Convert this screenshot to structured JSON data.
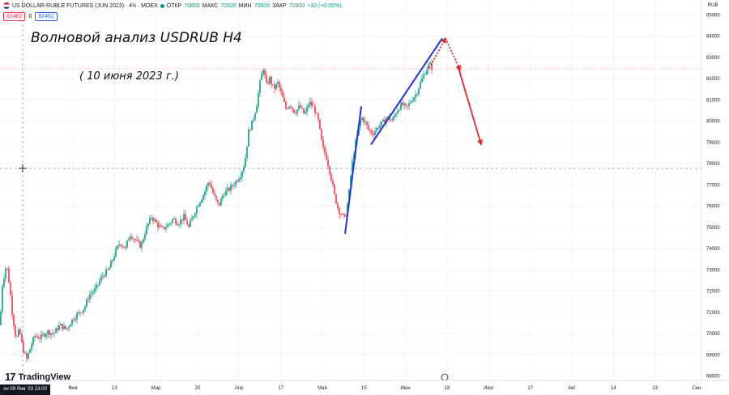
{
  "header": {
    "symbol": "US DOLLAR-RUBLE FUTURES (JUN 2023) · 4Ч · MOEX",
    "open_label": "ОТКР",
    "open": "70850",
    "high_label": "МАКС",
    "high": "70926",
    "low_label": "МИН",
    "low": "70826",
    "close_label": "ЗАКР",
    "close": "70900",
    "change": "+33 (+0.05%)",
    "price_pill": "82462",
    "zero": "0",
    "price_pill2": "82462"
  },
  "annotations": {
    "title": "Волновой анализ USDRUB H4",
    "date": "( 10 июня 2023 г.)"
  },
  "footer": {
    "logo_text": "TradingView",
    "crosshair_date": "пн 09 Янв '23  23:00"
  },
  "colors": {
    "up": "#089981",
    "down": "#f23645",
    "wave_line": "#2133e8",
    "forecast": "#e8242a",
    "price_line": "#f23645",
    "crosshair_line": "#787b86"
  },
  "chart_data": {
    "type": "candlestick",
    "y_unit": "RUB",
    "ylim": [
      67800,
      85700
    ],
    "y_ticks": [
      68000,
      69000,
      70000,
      71000,
      72000,
      73000,
      74000,
      75000,
      76000,
      77000,
      78000,
      79000,
      80000,
      81000,
      82000,
      83000,
      84000,
      85000
    ],
    "x_ticks": [
      "Фев",
      "13",
      "Мар",
      "20",
      "Апр",
      "17",
      "Май",
      "15",
      "Июн",
      "19",
      "Июл",
      "17",
      "Авг",
      "14",
      "23",
      "Сен"
    ],
    "last_price": "82462",
    "crosshair_price": "77776",
    "price_series": [
      {
        "t": 0,
        "v": 70400
      },
      {
        "t": 3,
        "v": 72300
      },
      {
        "t": 8,
        "v": 73300
      },
      {
        "t": 12,
        "v": 72200
      },
      {
        "t": 15,
        "v": 71000
      },
      {
        "t": 20,
        "v": 69700
      },
      {
        "t": 24,
        "v": 70200
      },
      {
        "t": 28,
        "v": 69300
      },
      {
        "t": 33,
        "v": 68800
      },
      {
        "t": 38,
        "v": 69400
      },
      {
        "t": 43,
        "v": 69900
      },
      {
        "t": 50,
        "v": 69800
      },
      {
        "t": 58,
        "v": 70100
      },
      {
        "t": 66,
        "v": 70000
      },
      {
        "t": 74,
        "v": 70400
      },
      {
        "t": 82,
        "v": 70200
      },
      {
        "t": 90,
        "v": 70700
      },
      {
        "t": 98,
        "v": 71000
      },
      {
        "t": 104,
        "v": 71200
      },
      {
        "t": 110,
        "v": 71800
      },
      {
        "t": 118,
        "v": 72100
      },
      {
        "t": 126,
        "v": 72700
      },
      {
        "t": 134,
        "v": 73000
      },
      {
        "t": 142,
        "v": 73800
      },
      {
        "t": 148,
        "v": 74300
      },
      {
        "t": 155,
        "v": 74000
      },
      {
        "t": 160,
        "v": 74700
      },
      {
        "t": 167,
        "v": 74400
      },
      {
        "t": 174,
        "v": 74100
      },
      {
        "t": 180,
        "v": 74900
      },
      {
        "t": 187,
        "v": 75500
      },
      {
        "t": 193,
        "v": 75200
      },
      {
        "t": 200,
        "v": 74900
      },
      {
        "t": 207,
        "v": 75100
      },
      {
        "t": 214,
        "v": 75400
      },
      {
        "t": 220,
        "v": 75200
      },
      {
        "t": 227,
        "v": 75500
      },
      {
        "t": 233,
        "v": 75000
      },
      {
        "t": 240,
        "v": 75700
      },
      {
        "t": 246,
        "v": 76200
      },
      {
        "t": 252,
        "v": 76600
      },
      {
        "t": 258,
        "v": 77200
      },
      {
        "t": 264,
        "v": 76500
      },
      {
        "t": 270,
        "v": 76000
      },
      {
        "t": 276,
        "v": 76600
      },
      {
        "t": 283,
        "v": 76800
      },
      {
        "t": 290,
        "v": 77100
      },
      {
        "t": 297,
        "v": 77500
      },
      {
        "t": 302,
        "v": 78000
      },
      {
        "t": 307,
        "v": 79500
      },
      {
        "t": 312,
        "v": 80000
      },
      {
        "t": 317,
        "v": 80800
      },
      {
        "t": 321,
        "v": 81800
      },
      {
        "t": 325,
        "v": 82500
      },
      {
        "t": 329,
        "v": 81700
      },
      {
        "t": 333,
        "v": 82000
      },
      {
        "t": 338,
        "v": 81500
      },
      {
        "t": 343,
        "v": 81800
      },
      {
        "t": 348,
        "v": 81200
      },
      {
        "t": 353,
        "v": 80600
      },
      {
        "t": 358,
        "v": 80800
      },
      {
        "t": 364,
        "v": 80400
      },
      {
        "t": 370,
        "v": 80700
      },
      {
        "t": 376,
        "v": 80300
      },
      {
        "t": 382,
        "v": 80900
      },
      {
        "t": 388,
        "v": 80600
      },
      {
        "t": 393,
        "v": 80000
      },
      {
        "t": 398,
        "v": 78800
      },
      {
        "t": 403,
        "v": 78300
      },
      {
        "t": 408,
        "v": 77500
      },
      {
        "t": 413,
        "v": 76500
      },
      {
        "t": 418,
        "v": 75800
      },
      {
        "t": 422,
        "v": 75600
      },
      {
        "t": 426,
        "v": 75400
      },
      {
        "t": 430,
        "v": 76300
      },
      {
        "t": 434,
        "v": 77800
      },
      {
        "t": 438,
        "v": 78800
      },
      {
        "t": 442,
        "v": 79500
      },
      {
        "t": 446,
        "v": 80200
      },
      {
        "t": 450,
        "v": 80000
      },
      {
        "t": 455,
        "v": 79600
      },
      {
        "t": 460,
        "v": 79400
      },
      {
        "t": 466,
        "v": 79700
      },
      {
        "t": 472,
        "v": 79900
      },
      {
        "t": 478,
        "v": 80200
      },
      {
        "t": 484,
        "v": 80000
      },
      {
        "t": 490,
        "v": 80500
      },
      {
        "t": 496,
        "v": 80800
      },
      {
        "t": 502,
        "v": 80600
      },
      {
        "t": 508,
        "v": 81000
      },
      {
        "t": 514,
        "v": 81300
      },
      {
        "t": 520,
        "v": 81900
      },
      {
        "t": 526,
        "v": 82400
      },
      {
        "t": 530,
        "v": 82700
      },
      {
        "t": 534,
        "v": 82462
      }
    ],
    "wave_lines": [
      {
        "t1": 426,
        "v1": 74700,
        "t2": 446,
        "v2": 80700
      },
      {
        "t1": 458,
        "v1": 78900,
        "t2": 546,
        "v2": 83900
      }
    ],
    "forecast_lines": [
      {
        "t1": 530,
        "v1": 82500,
        "t2": 550,
        "v2": 83900,
        "dashed": true
      },
      {
        "t1": 550,
        "v1": 83900,
        "t2": 568,
        "v2": 82400,
        "dashed": true
      },
      {
        "t1": 566,
        "v1": 82500,
        "t2": 594,
        "v2": 78900,
        "dashed": false
      }
    ]
  }
}
